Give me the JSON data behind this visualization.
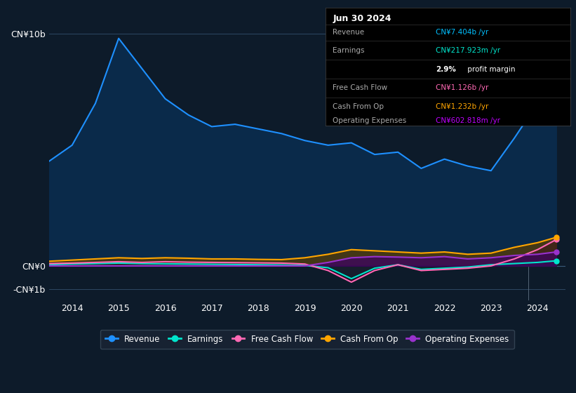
{
  "background_color": "#0d1b2a",
  "plot_bg_color": "#0d1b2a",
  "years": [
    2013.5,
    2014.0,
    2014.5,
    2015.0,
    2015.5,
    2016.0,
    2016.5,
    2017.0,
    2017.5,
    2018.0,
    2018.5,
    2019.0,
    2019.5,
    2020.0,
    2020.5,
    2021.0,
    2021.5,
    2022.0,
    2022.5,
    2023.0,
    2023.5,
    2024.0,
    2024.4
  ],
  "revenue": [
    4.5,
    5.2,
    7.0,
    9.8,
    8.5,
    7.2,
    6.5,
    6.0,
    6.1,
    5.9,
    5.7,
    5.4,
    5.2,
    5.3,
    4.8,
    4.9,
    4.2,
    4.6,
    4.3,
    4.1,
    5.5,
    7.0,
    7.4
  ],
  "earnings": [
    0.05,
    0.08,
    0.1,
    0.12,
    0.1,
    0.09,
    0.08,
    0.07,
    0.06,
    0.05,
    0.04,
    0.02,
    -0.08,
    -0.55,
    -0.1,
    0.05,
    -0.15,
    -0.1,
    -0.05,
    0.05,
    0.1,
    0.15,
    0.22
  ],
  "free_cf": [
    0.1,
    0.12,
    0.15,
    0.18,
    0.15,
    0.18,
    0.16,
    0.15,
    0.14,
    0.13,
    0.12,
    0.08,
    -0.2,
    -0.7,
    -0.2,
    0.05,
    -0.2,
    -0.15,
    -0.1,
    0.0,
    0.3,
    0.7,
    1.13
  ],
  "cash_op": [
    0.2,
    0.25,
    0.3,
    0.35,
    0.32,
    0.35,
    0.33,
    0.3,
    0.3,
    0.28,
    0.27,
    0.35,
    0.5,
    0.7,
    0.65,
    0.6,
    0.55,
    0.6,
    0.5,
    0.55,
    0.8,
    1.0,
    1.23
  ],
  "op_exp": [
    0.0,
    0.0,
    0.0,
    0.0,
    0.0,
    0.0,
    0.0,
    0.0,
    0.0,
    0.0,
    0.0,
    0.0,
    0.15,
    0.35,
    0.4,
    0.38,
    0.35,
    0.4,
    0.3,
    0.35,
    0.45,
    0.5,
    0.6
  ],
  "revenue_color": "#1e90ff",
  "earnings_color": "#00e5cc",
  "free_cf_color": "#ff69b4",
  "cash_op_color": "#ffa500",
  "op_exp_color": "#9932cc",
  "ytick_labels": [
    "CN¥10b",
    "CN¥0",
    "-CN¥1b"
  ],
  "ytick_values": [
    10,
    0,
    -1
  ],
  "ylim": [
    -1.5,
    11.0
  ],
  "xlim": [
    2013.5,
    2024.6
  ],
  "xtick_years": [
    2014,
    2015,
    2016,
    2017,
    2018,
    2019,
    2020,
    2021,
    2022,
    2023,
    2024
  ],
  "legend_items": [
    {
      "label": "Revenue",
      "color": "#1e90ff"
    },
    {
      "label": "Earnings",
      "color": "#00e5cc"
    },
    {
      "label": "Free Cash Flow",
      "color": "#ff69b4"
    },
    {
      "label": "Cash From Op",
      "color": "#ffa500"
    },
    {
      "label": "Operating Expenses",
      "color": "#9932cc"
    }
  ],
  "box_date": "Jun 30 2024",
  "box_rows": [
    {
      "label": "Revenue",
      "value": "CN¥7.404b /yr",
      "value_color": "#00bfff",
      "bold_prefix": null
    },
    {
      "label": "Earnings",
      "value": "CN¥217.923m /yr",
      "value_color": "#00e5cc",
      "bold_prefix": null
    },
    {
      "label": "",
      "value": "profit margin",
      "value_color": "#ffffff",
      "bold_prefix": "2.9%"
    },
    {
      "label": "Free Cash Flow",
      "value": "CN¥1.126b /yr",
      "value_color": "#ff69b4",
      "bold_prefix": null
    },
    {
      "label": "Cash From Op",
      "value": "CN¥1.232b /yr",
      "value_color": "#ffa500",
      "bold_prefix": null
    },
    {
      "label": "Operating Expenses",
      "value": "CN¥602.818m /yr",
      "value_color": "#bf00ff",
      "bold_prefix": null
    }
  ]
}
